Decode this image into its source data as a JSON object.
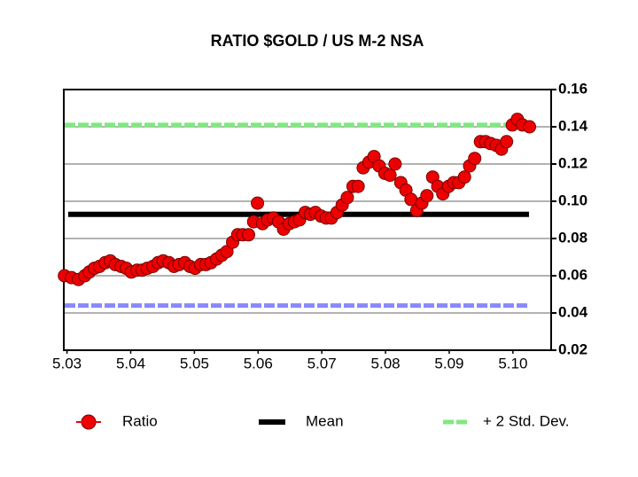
{
  "chart_data": {
    "type": "scatter",
    "title": "RATIO $GOLD / US M-2 NSA",
    "xlim": [
      5.0295,
      5.106
    ],
    "ylim": [
      0.02,
      0.16
    ],
    "xticks": [
      5.03,
      5.04,
      5.05,
      5.06,
      5.07,
      5.08,
      5.09,
      {
        "value": 5.1,
        "label": "5.10"
      }
    ],
    "yticks": [
      0.02,
      0.04,
      0.06,
      0.08,
      {
        "value": 0.1,
        "label": "0.10"
      },
      0.12,
      0.14,
      0.16
    ],
    "grid": true,
    "series": [
      {
        "name": "Ratio",
        "color": "#ee0000",
        "x": [
          5.0296,
          5.0307,
          5.0318,
          5.0328,
          5.0335,
          5.0343,
          5.0351,
          5.036,
          5.0368,
          5.0376,
          5.0385,
          5.0393,
          5.0401,
          5.041,
          5.0418,
          5.0426,
          5.0435,
          5.0443,
          5.0451,
          5.046,
          5.0468,
          5.0476,
          5.0485,
          5.0493,
          5.0501,
          5.051,
          5.0518,
          5.0526,
          5.0535,
          5.0543,
          5.0551,
          5.056,
          5.0568,
          5.0576,
          5.0585,
          5.0593,
          5.0599,
          5.0607,
          5.0615,
          5.0624,
          5.0632,
          5.064,
          5.0649,
          5.0657,
          5.0665,
          5.0674,
          5.0682,
          5.069,
          5.0699,
          5.0707,
          5.0715,
          5.0724,
          5.0732,
          5.074,
          5.0749,
          5.0757,
          5.0765,
          5.0774,
          5.0782,
          5.079,
          5.0799,
          5.0807,
          5.0815,
          5.0824,
          5.0832,
          5.084,
          5.0849,
          5.0857,
          5.0865,
          5.0874,
          5.0882,
          5.089,
          5.0899,
          5.0907,
          5.0915,
          5.0924,
          5.0932,
          5.094,
          5.0949,
          5.0957,
          5.0965,
          5.0974,
          5.0982,
          5.099,
          5.0999,
          5.1007,
          5.1015,
          5.1026
        ],
        "values": [
          0.06,
          0.059,
          0.058,
          0.06,
          0.062,
          0.064,
          0.065,
          0.067,
          0.068,
          0.066,
          0.065,
          0.064,
          0.062,
          0.063,
          0.063,
          0.064,
          0.065,
          0.067,
          0.068,
          0.067,
          0.065,
          0.066,
          0.067,
          0.065,
          0.064,
          0.066,
          0.066,
          0.067,
          0.069,
          0.071,
          0.073,
          0.078,
          0.082,
          0.082,
          0.082,
          0.089,
          0.099,
          0.088,
          0.09,
          0.091,
          0.089,
          0.085,
          0.088,
          0.089,
          0.09,
          0.094,
          0.093,
          0.094,
          0.092,
          0.091,
          0.091,
          0.094,
          0.098,
          0.102,
          0.108,
          0.108,
          0.118,
          0.121,
          0.124,
          0.119,
          0.115,
          0.114,
          0.12,
          0.11,
          0.106,
          0.101,
          0.095,
          0.099,
          0.103,
          0.113,
          0.108,
          0.104,
          0.108,
          0.11,
          0.11,
          0.113,
          0.119,
          0.123,
          0.132,
          0.132,
          0.131,
          0.13,
          0.128,
          0.132,
          0.141,
          0.144,
          0.141,
          0.14
        ]
      }
    ],
    "lines": [
      {
        "name": "Mean",
        "value": 0.093,
        "color": "#000000"
      },
      {
        "name": "+ 2 Std. Dev.",
        "value": 0.141,
        "color": "#80e880"
      },
      {
        "value": 0.044,
        "color": "#8888ff"
      }
    ]
  }
}
